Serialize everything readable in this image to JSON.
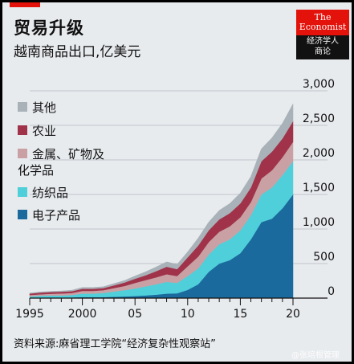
{
  "header": {
    "title": "贸易升级",
    "subtitle": "越南商品出口,亿美元"
  },
  "logo": {
    "line1": "The",
    "line2": "Economist",
    "line3": "经济学人",
    "line4": "商论"
  },
  "source": "资料来源:麻省理工学院“经济复杂性观察站”",
  "watermark": "@张培根管理",
  "colors": {
    "background": "#e8ebee",
    "brand_red": "#e3120b",
    "electronics": "#1a6a9e",
    "textiles": "#4fcfd9",
    "metals": "#c9a1a5",
    "agriculture": "#a0334a",
    "other": "#a9b2b9"
  },
  "chart_data": {
    "type": "area",
    "stacked": true,
    "title": "贸易升级",
    "subtitle": "越南商品出口,亿美元",
    "x": [
      1995,
      1996,
      1997,
      1998,
      1999,
      2000,
      2001,
      2002,
      2003,
      2004,
      2005,
      2006,
      2007,
      2008,
      2009,
      2010,
      2011,
      2012,
      2013,
      2014,
      2015,
      2016,
      2017,
      2018,
      2019,
      2020
    ],
    "x_tick_labels": [
      "1995",
      "2000",
      "05",
      "10",
      "15",
      "20"
    ],
    "y_ticks": [
      "0",
      "500",
      "1,000",
      "1,500",
      "2,000",
      "2,500",
      "3,000"
    ],
    "ylim": [
      0,
      3000
    ],
    "legend_position": "left",
    "grid": true,
    "series": [
      {
        "name": "电子产品",
        "color": "#1a6a9e",
        "values": [
          5,
          5,
          8,
          8,
          10,
          15,
          15,
          15,
          20,
          25,
          30,
          40,
          50,
          65,
          70,
          120,
          200,
          380,
          500,
          550,
          650,
          850,
          1100,
          1150,
          1300,
          1500
        ]
      },
      {
        "name": "纺织品",
        "color": "#4fcfd9",
        "values": [
          20,
          30,
          30,
          30,
          35,
          50,
          50,
          60,
          75,
          90,
          110,
          130,
          150,
          170,
          150,
          200,
          230,
          250,
          280,
          300,
          330,
          350,
          400,
          450,
          480,
          480
        ]
      },
      {
        "name": "金属、矿物及化学品",
        "color": "#c9a1a5",
        "values": [
          20,
          20,
          25,
          30,
          30,
          40,
          40,
          40,
          50,
          60,
          80,
          90,
          100,
          110,
          100,
          140,
          170,
          180,
          180,
          190,
          190,
          190,
          230,
          250,
          260,
          280
        ]
      },
      {
        "name": "农业",
        "color": "#a0334a",
        "values": [
          20,
          25,
          25,
          25,
          25,
          30,
          30,
          30,
          40,
          50,
          60,
          70,
          90,
          110,
          100,
          130,
          160,
          170,
          180,
          190,
          200,
          210,
          250,
          270,
          270,
          300
        ]
      },
      {
        "name": "其他",
        "color": "#a9b2b9",
        "values": [
          10,
          10,
          10,
          10,
          15,
          20,
          20,
          20,
          25,
          30,
          40,
          50,
          60,
          70,
          70,
          80,
          110,
          120,
          130,
          140,
          150,
          160,
          180,
          200,
          220,
          250
        ]
      }
    ]
  }
}
